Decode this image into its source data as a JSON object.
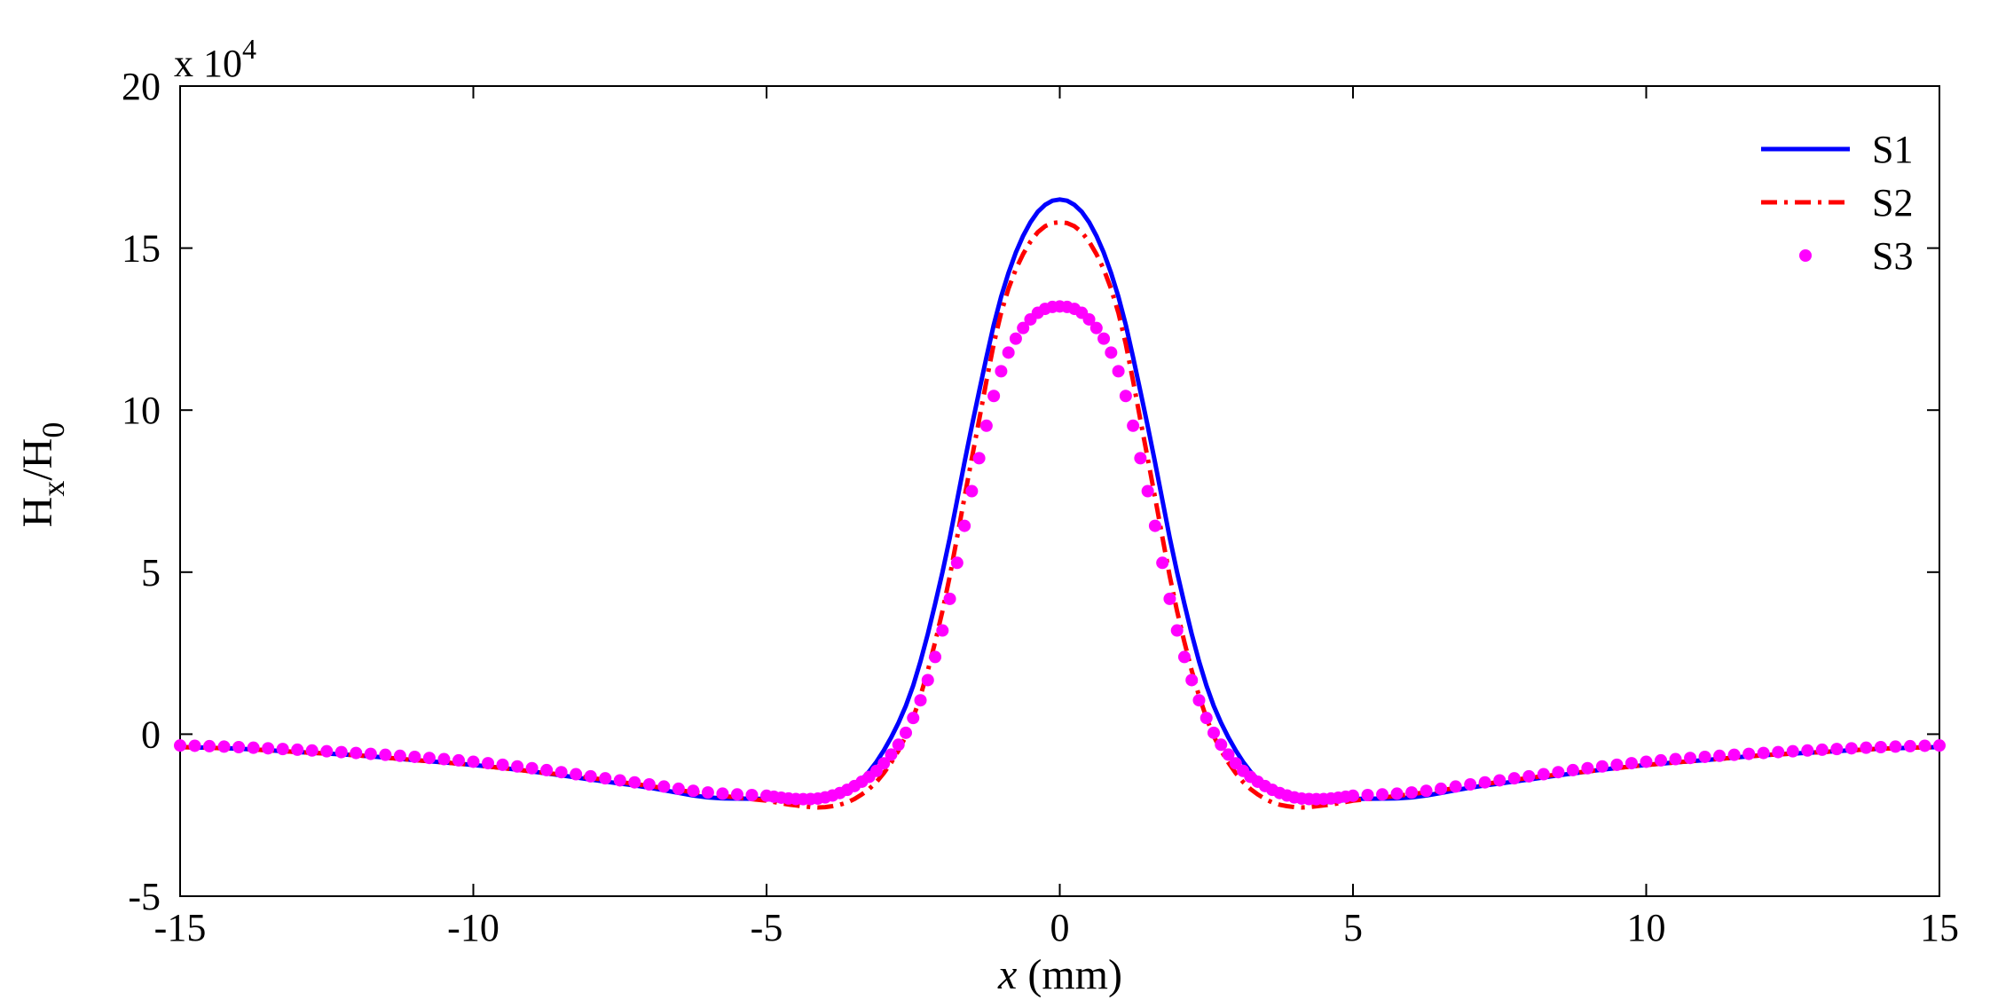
{
  "chart_data": {
    "type": "line",
    "title": "",
    "xlabel": "(mm)",
    "xlabel_var": "x",
    "ylabel_main": "H",
    "ylabel_sub1": "x",
    "ylabel_mid": "/H",
    "ylabel_sub2": "0",
    "y_exponent_base": "x 10",
    "y_exponent_power": "4",
    "xlim": [
      -15,
      15
    ],
    "ylim": [
      -5,
      20
    ],
    "xticks": [
      -15,
      -10,
      -5,
      0,
      5,
      10,
      15
    ],
    "yticks": [
      -5,
      0,
      5,
      10,
      15,
      20
    ],
    "xtick_labels": [
      "-15",
      "-10",
      "-5",
      "0",
      "5",
      "10",
      "15"
    ],
    "ytick_labels": [
      "-5",
      "0",
      "5",
      "10",
      "15",
      "20"
    ],
    "grid": false,
    "legend_position": "top-right",
    "x": [
      -15,
      -14,
      -13,
      -12,
      -11,
      -10,
      -9,
      -8,
      -7,
      -6,
      -5,
      -4.5,
      -4,
      -3.5,
      -3,
      -2.5,
      -2,
      -1.5,
      -1,
      -0.5,
      0,
      0.5,
      1,
      1.5,
      2,
      2.5,
      3,
      3.5,
      4,
      4.5,
      5,
      6,
      7,
      8,
      9,
      10,
      11,
      12,
      13,
      14,
      15
    ],
    "series": [
      {
        "name": "S1",
        "color": "#0000ff",
        "style": "solid",
        "values": [
          -0.4,
          -0.45,
          -0.55,
          -0.65,
          -0.8,
          -0.95,
          -1.15,
          -1.4,
          -1.65,
          -1.95,
          -2.0,
          -2.1,
          -2.0,
          -1.6,
          -0.5,
          1.5,
          5.0,
          9.5,
          13.5,
          15.8,
          16.5,
          15.8,
          13.5,
          9.5,
          5.0,
          1.5,
          -0.5,
          -1.6,
          -2.0,
          -2.1,
          -2.0,
          -1.95,
          -1.65,
          -1.4,
          -1.15,
          -0.95,
          -0.8,
          -0.65,
          -0.55,
          -0.45,
          -0.4
        ]
      },
      {
        "name": "S2",
        "color": "#ff0000",
        "style": "dashdot",
        "values": [
          -0.4,
          -0.45,
          -0.55,
          -0.65,
          -0.8,
          -0.95,
          -1.15,
          -1.35,
          -1.6,
          -1.85,
          -2.05,
          -2.2,
          -2.25,
          -2.0,
          -1.2,
          0.5,
          3.8,
          8.5,
          13.0,
          15.2,
          15.8,
          15.2,
          13.0,
          8.5,
          3.8,
          0.5,
          -1.2,
          -2.0,
          -2.25,
          -2.2,
          -2.05,
          -1.85,
          -1.6,
          -1.35,
          -1.15,
          -0.95,
          -0.8,
          -0.65,
          -0.55,
          -0.45,
          -0.4
        ]
      },
      {
        "name": "S3",
        "color": "#ff00ff",
        "style": "markers",
        "values": [
          -0.35,
          -0.4,
          -0.48,
          -0.58,
          -0.7,
          -0.85,
          -1.05,
          -1.3,
          -1.55,
          -1.8,
          -1.9,
          -2.0,
          -1.95,
          -1.6,
          -0.9,
          0.5,
          3.2,
          7.5,
          11.2,
          12.8,
          13.2,
          12.8,
          11.2,
          7.5,
          3.2,
          0.5,
          -0.9,
          -1.6,
          -1.95,
          -2.0,
          -1.9,
          -1.8,
          -1.55,
          -1.3,
          -1.05,
          -0.85,
          -0.7,
          -0.58,
          -0.48,
          -0.4,
          -0.35
        ]
      }
    ]
  }
}
